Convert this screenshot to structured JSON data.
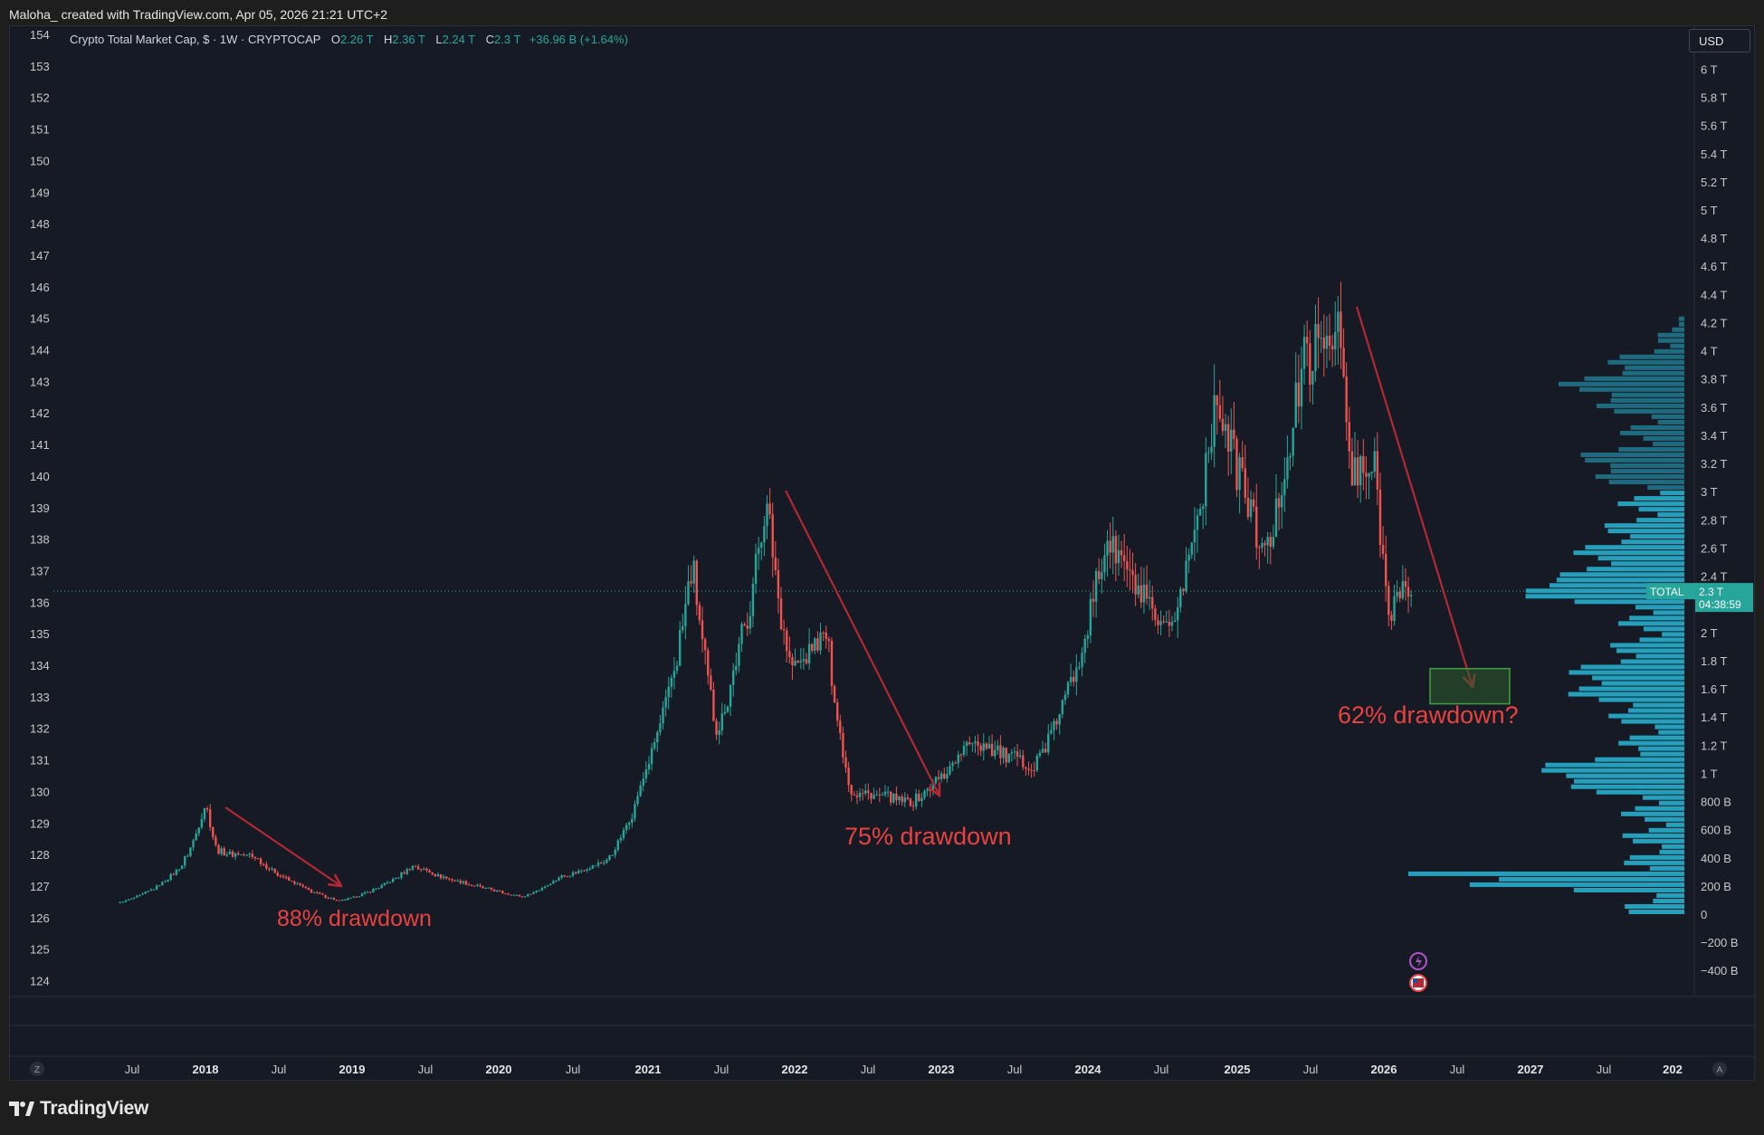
{
  "attribution": "Maloha_ created with TradingView.com, Apr 05, 2026 21:21 UTC+2",
  "legend": {
    "title": "Crypto Total Market Cap, $ · 1W · CRYPTOCAP",
    "o_key": "O",
    "o_val": "2.26 T",
    "h_key": "H",
    "h_val": "2.36 T",
    "l_key": "L",
    "l_val": "2.24 T",
    "c_key": "C",
    "c_val": "2.3 T",
    "change": "+36.96 B (+1.64%)"
  },
  "currency_button": "USD",
  "price_tag": {
    "symbol": "TOTAL",
    "value": "2.3 T",
    "countdown": "04:38:59"
  },
  "axis_left_ticks": [
    154,
    153,
    152,
    151,
    150,
    149,
    148,
    147,
    146,
    145,
    144,
    143,
    142,
    141,
    140,
    139,
    138,
    137,
    136,
    135,
    134,
    133,
    132,
    131,
    130,
    129,
    128,
    127,
    126,
    125,
    124
  ],
  "axis_right_ticks": [
    "6 T",
    "5.8 T",
    "5.6 T",
    "5.4 T",
    "5.2 T",
    "5 T",
    "4.8 T",
    "4.6 T",
    "4.4 T",
    "4.2 T",
    "4 T",
    "3.8 T",
    "3.6 T",
    "3.4 T",
    "3.2 T",
    "3 T",
    "2.8 T",
    "2.6 T",
    "2.4 T",
    "2.2 T",
    "2 T",
    "1.8 T",
    "1.6 T",
    "1.4 T",
    "1.2 T",
    "1 T",
    "800 B",
    "600 B",
    "400 B",
    "200 B",
    "0",
    "−200 B",
    "−400 B"
  ],
  "time_axis": [
    "Jul",
    "2018",
    "Jul",
    "2019",
    "Jul",
    "2020",
    "Jul",
    "2021",
    "Jul",
    "2022",
    "Jul",
    "2023",
    "Jul",
    "2024",
    "Jul",
    "2025",
    "Jul",
    "2026",
    "Jul",
    "2027",
    "Jul",
    "202"
  ],
  "time_axis_bold": [
    "2018",
    "2019",
    "2020",
    "2021",
    "2022",
    "2023",
    "2024",
    "2025",
    "2026",
    "2027",
    "202"
  ],
  "bottom_buttons": {
    "left": "Z",
    "right": "A"
  },
  "annotations": {
    "a1": "88% drawdown",
    "a2": "75% drawdown",
    "a3": "62% drawdown?"
  },
  "colors": {
    "up": "#26a69a",
    "down": "#ef5350",
    "annotation": "#e8423f",
    "arrow": "#b22833",
    "profile": "#26a8c4",
    "target_box": "#2e5c2e"
  },
  "logo_text": "TradingView",
  "chart_data": {
    "type": "candlestick",
    "title": "Crypto Total Market Cap, $ · 1W · CRYPTOCAP",
    "timeframe": "1W",
    "currency": "USD",
    "last_close": 2.3,
    "last_close_unit": "T",
    "key_prices_T": [
      {
        "date": "2017-06",
        "value": 0.09
      },
      {
        "date": "2017-11",
        "value": 0.35
      },
      {
        "date": "2018-01",
        "value": 0.8
      },
      {
        "date": "2018-02",
        "value": 0.45
      },
      {
        "date": "2018-05",
        "value": 0.42
      },
      {
        "date": "2018-09",
        "value": 0.2
      },
      {
        "date": "2018-12",
        "value": 0.1
      },
      {
        "date": "2019-06",
        "value": 0.35
      },
      {
        "date": "2019-12",
        "value": 0.19
      },
      {
        "date": "2020-03",
        "value": 0.13
      },
      {
        "date": "2020-06",
        "value": 0.27
      },
      {
        "date": "2020-10",
        "value": 0.39
      },
      {
        "date": "2021-01",
        "value": 1.0
      },
      {
        "date": "2021-05",
        "value": 2.5
      },
      {
        "date": "2021-07",
        "value": 1.3
      },
      {
        "date": "2021-11",
        "value": 2.95
      },
      {
        "date": "2022-01",
        "value": 1.75
      },
      {
        "date": "2022-04",
        "value": 2.0
      },
      {
        "date": "2022-06",
        "value": 0.87
      },
      {
        "date": "2022-11",
        "value": 0.8
      },
      {
        "date": "2023-04",
        "value": 1.25
      },
      {
        "date": "2023-09",
        "value": 1.05
      },
      {
        "date": "2023-12",
        "value": 1.65
      },
      {
        "date": "2024-03",
        "value": 2.7
      },
      {
        "date": "2024-08",
        "value": 1.95
      },
      {
        "date": "2024-12",
        "value": 3.7
      },
      {
        "date": "2025-04",
        "value": 2.55
      },
      {
        "date": "2025-07",
        "value": 3.9
      },
      {
        "date": "2025-10",
        "value": 4.2
      },
      {
        "date": "2025-11",
        "value": 3.1
      },
      {
        "date": "2026-01",
        "value": 3.15
      },
      {
        "date": "2026-02",
        "value": 2.2
      },
      {
        "date": "2026-04",
        "value": 2.3
      }
    ],
    "drawdowns": [
      {
        "label": "88% drawdown"
      },
      {
        "label": "75% drawdown"
      },
      {
        "label": "62% drawdown?"
      }
    ],
    "target_zone_T": [
      1.5,
      1.75
    ]
  }
}
